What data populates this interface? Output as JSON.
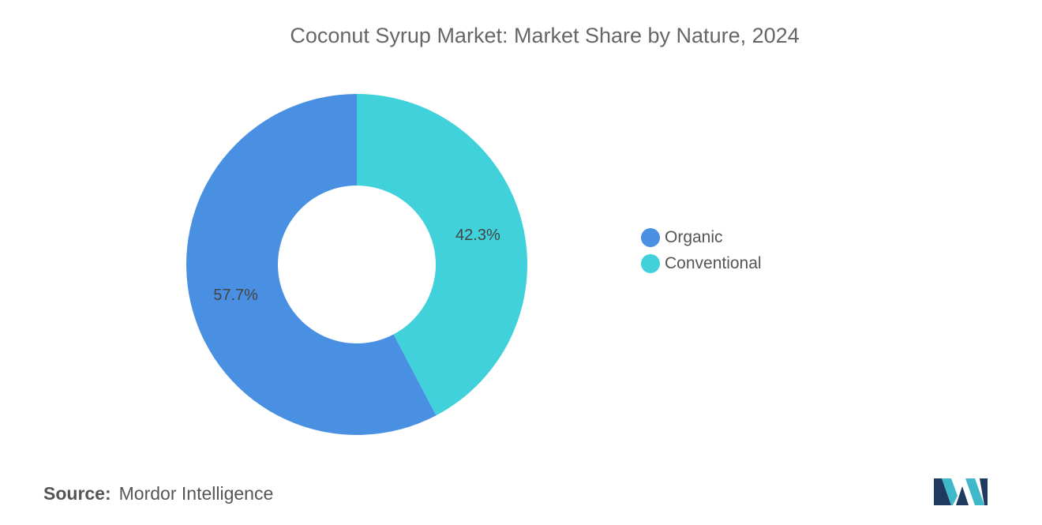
{
  "chart_data": {
    "type": "pie",
    "donut": true,
    "title": "Coconut Syrup Market: Market Share by Nature, 2024",
    "slices": [
      {
        "label": "Organic",
        "value": 57.7,
        "display": "57.7%",
        "color": "#4a90e2"
      },
      {
        "label": "Conventional",
        "value": 42.3,
        "display": "42.3%",
        "color": "#40d1db"
      }
    ],
    "legend_position": "right"
  },
  "source": {
    "label": "Source:",
    "text": "Mordor Intelligence"
  },
  "logo": {
    "icon": "mordor-intelligence-logo-icon",
    "colors": [
      "#1e3a5f",
      "#3fb8c9"
    ]
  }
}
